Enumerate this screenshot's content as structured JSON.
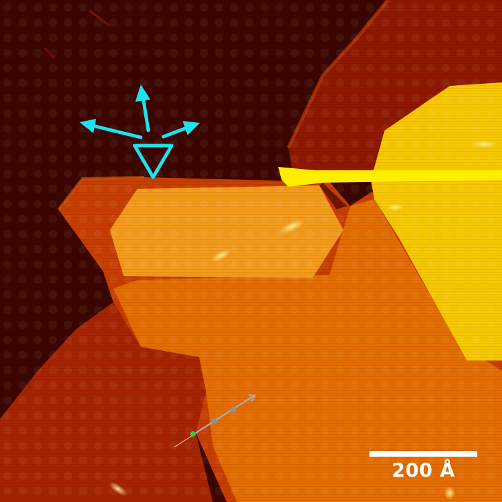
{
  "image": {
    "kind": "STM topography micrograph",
    "colormap": [
      "#3a0400",
      "#8a1500",
      "#c23a00",
      "#e06a00",
      "#f5a000",
      "#ffe600"
    ]
  },
  "scale_bar": {
    "label": "200 Å",
    "color": "#ffffff"
  },
  "annotations": {
    "lattice_marker_color": "#1de3f0",
    "profile_line_color": "#9fb0c8",
    "profile_start_dot_color": "#35c83a"
  }
}
